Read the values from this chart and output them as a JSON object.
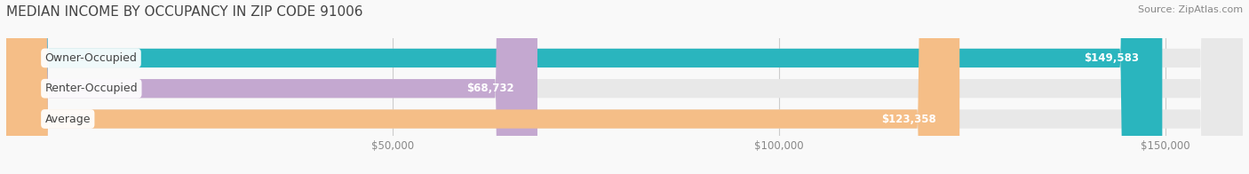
{
  "title": "MEDIAN INCOME BY OCCUPANCY IN ZIP CODE 91006",
  "source": "Source: ZipAtlas.com",
  "categories": [
    "Owner-Occupied",
    "Renter-Occupied",
    "Average"
  ],
  "values": [
    149583,
    68732,
    123358
  ],
  "bar_colors": [
    "#2ab5be",
    "#c4a8d0",
    "#f5be87"
  ],
  "bar_bg_color": "#e8e8e8",
  "label_texts": [
    "$149,583",
    "$68,732",
    "$123,358"
  ],
  "xmax": 160000,
  "xticks": [
    50000,
    100000,
    150000
  ],
  "xtick_labels": [
    "$50,000",
    "$100,000",
    "$150,000"
  ],
  "bg_color": "#f9f9f9",
  "bar_height": 0.62,
  "title_fontsize": 11,
  "source_fontsize": 8,
  "label_fontsize": 8.5,
  "cat_fontsize": 9,
  "tick_fontsize": 8.5,
  "title_color": "#444444",
  "source_color": "#888888",
  "tick_color": "#888888",
  "cat_color": "#444444",
  "label_color_inside": "#ffffff",
  "label_color_outside": "#888888",
  "grid_color": "#cccccc"
}
